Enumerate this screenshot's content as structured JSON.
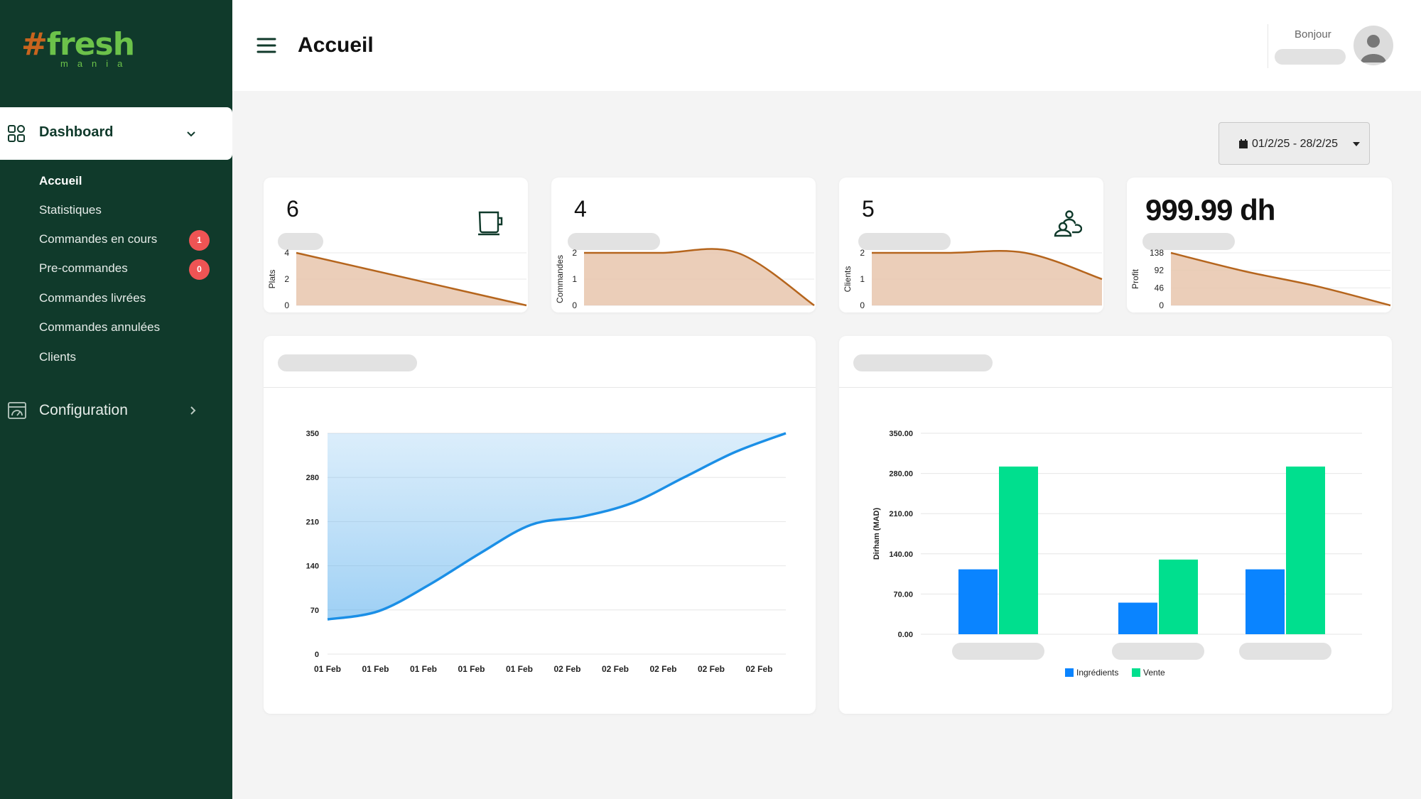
{
  "brand": {
    "logo_text": "fresh",
    "logo_hash": "#",
    "logo_sub": "mania"
  },
  "sidebar": {
    "dashboard_label": "Dashboard",
    "items": [
      {
        "label": "Accueil",
        "current": true
      },
      {
        "label": "Statistiques"
      },
      {
        "label": "Commandes en cours",
        "badge": "1"
      },
      {
        "label": "Pre-commandes",
        "badge": "0"
      },
      {
        "label": "Commandes livrées"
      },
      {
        "label": "Commandes annulées"
      },
      {
        "label": "Clients"
      }
    ],
    "configuration_label": "Configuration"
  },
  "header": {
    "title": "Accueil",
    "greeting": "Bonjour"
  },
  "date_range": "01/2/25 - 28/2/25",
  "colors": {
    "sidebar_bg": "#103a2b",
    "brand_green": "#6cc24a",
    "badge_red": "#ee5454",
    "spark_line": "#b5651d",
    "spark_fill": "#e8c5ad",
    "area_line": "#1b8fe6",
    "bar_ingredients": "#0a84ff",
    "bar_vente": "#00df8e"
  },
  "stats": [
    {
      "value": "6",
      "icon": "cup-icon"
    },
    {
      "value": "4"
    },
    {
      "value": "5",
      "icon": "users-icon"
    },
    {
      "value": "999.99 dh"
    }
  ],
  "chart_data": [
    {
      "type": "area",
      "ylabel": "Plats",
      "yticks": [
        "0",
        "2",
        "4"
      ],
      "ylim": [
        0,
        4
      ],
      "values": [
        4,
        0
      ]
    },
    {
      "type": "area",
      "ylabel": "Commandes",
      "yticks": [
        "0",
        "1",
        "2"
      ],
      "ylim": [
        0,
        2
      ],
      "values": [
        2,
        2,
        2,
        0
      ]
    },
    {
      "type": "area",
      "ylabel": "Clients",
      "yticks": [
        "0",
        "1",
        "2"
      ],
      "ylim": [
        0,
        2
      ],
      "values": [
        2,
        2,
        2,
        1
      ]
    },
    {
      "type": "area",
      "ylabel": "Profit",
      "yticks": [
        "0",
        "46",
        "92",
        "138"
      ],
      "ylim": [
        0,
        138
      ],
      "values": [
        138,
        90,
        50,
        0
      ]
    },
    {
      "type": "area",
      "categories": [
        "01 Feb",
        "01 Feb",
        "01 Feb",
        "01 Feb",
        "01 Feb",
        "02 Feb",
        "02 Feb",
        "02 Feb",
        "02 Feb",
        "02 Feb"
      ],
      "yticks": [
        "0",
        "70",
        "140",
        "210",
        "280",
        "350"
      ],
      "ylim": [
        0,
        350
      ],
      "points": [
        55,
        68,
        110,
        160,
        205,
        218,
        240,
        280,
        320,
        350
      ],
      "grid": true
    },
    {
      "type": "bar",
      "ylabel": "Dirham (MAD)",
      "yticks": [
        "0.00",
        "70.00",
        "140.00",
        "210.00",
        "280.00",
        "350.00"
      ],
      "ylim": [
        0,
        350
      ],
      "groups": 3,
      "series": [
        {
          "name": "Ingrédients",
          "values": [
            113,
            55,
            113
          ]
        },
        {
          "name": "Vente",
          "values": [
            292,
            130,
            292
          ]
        }
      ],
      "legend": "bottom"
    }
  ]
}
